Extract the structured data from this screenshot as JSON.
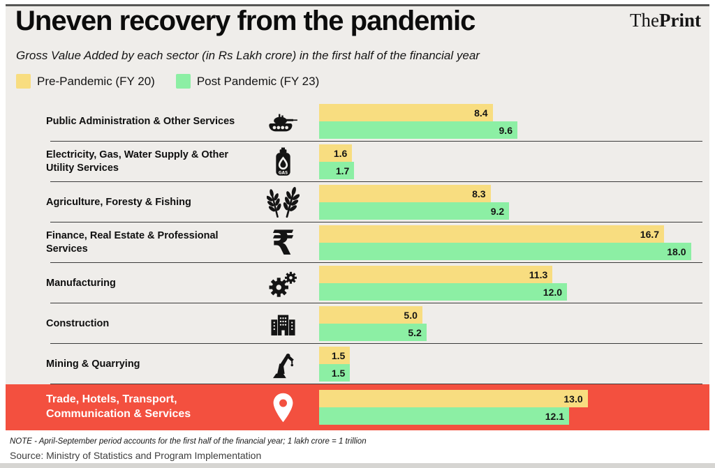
{
  "header": {
    "title": "Uneven recovery from the pandemic",
    "brand_the": "The",
    "brand_print": "Print",
    "subtitle": "Gross Value Added by each sector (in Rs Lakh crore) in the first half of the financial year"
  },
  "chart_data": {
    "type": "bar",
    "orientation": "horizontal",
    "title": "Uneven recovery from the pandemic",
    "subtitle": "Gross Value Added by each sector (in Rs Lakh crore) in the first half of the financial year",
    "unit": "Rs Lakh crore",
    "categories": [
      "Public Administration & Other Services",
      "Electricity, Gas, Water Supply & Other Utility Services",
      "Agriculture, Foresty & Fishing",
      "Finance, Real Estate & Professional Services",
      "Manufacturing",
      "Construction",
      "Mining & Quarrying",
      "Trade, Hotels, Transport, Communication & Services"
    ],
    "icons": [
      "tank-icon",
      "gas-cylinder-icon",
      "wheat-icon",
      "rupee-icon",
      "gears-icon",
      "building-icon",
      "excavator-icon",
      "location-pin-icon"
    ],
    "series": [
      {
        "name": "Pre-Pandemic (FY 20)",
        "color": "#f8dd80",
        "values": [
          8.4,
          1.6,
          8.3,
          16.7,
          11.3,
          5.0,
          1.5,
          13.0
        ]
      },
      {
        "name": "Post Pandemic (FY 23)",
        "color": "#8cefa4",
        "values": [
          9.6,
          1.7,
          9.2,
          18.0,
          12.0,
          5.2,
          1.5,
          12.1
        ]
      }
    ],
    "xmax": 18.0,
    "value_label_decimals": 1,
    "grid": "row-separators",
    "legend_position": "top-left",
    "highlighted_category": "Trade, Hotels, Transport, Communication & Services",
    "highlight_color": "#f3503f"
  },
  "footer": {
    "note": "NOTE - April-September period accounts for the first half of the financial year; 1 lakh crore = 1 trillion",
    "source": "Source: Ministry of Statistics and Program Implementation"
  }
}
